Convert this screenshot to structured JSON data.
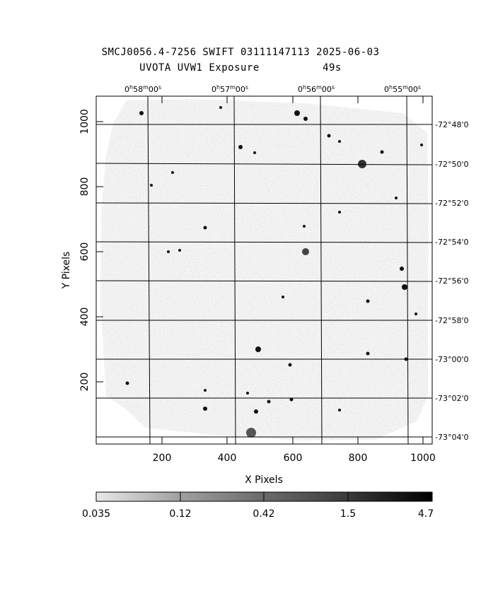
{
  "header": {
    "line1": "SMCJ0056.4-7256 SWIFT 03111147113 2025-06-03",
    "line2": "UVOTA UVW1 Exposure          49s"
  },
  "axes": {
    "xlabel": "X Pixels",
    "ylabel": "Y Pixels",
    "x_ticks": [
      "200",
      "400",
      "600",
      "800",
      "1000"
    ],
    "y_ticks": [
      "200",
      "400",
      "600",
      "800",
      "1000"
    ],
    "ra_ticks": [
      {
        "h": "0",
        "m": "58",
        "s": "00"
      },
      {
        "h": "0",
        "m": "57",
        "s": "00"
      },
      {
        "h": "0",
        "m": "56",
        "s": "00"
      },
      {
        "h": "0",
        "m": "55",
        "s": "00"
      }
    ],
    "dec_ticks": [
      "-72°48'0",
      "-72°50'0",
      "-72°52'0",
      "-72°54'0",
      "-72°56'0",
      "-72°58'0",
      "-73°00'0",
      "-73°02'0",
      "-73°04'0"
    ]
  },
  "colorbar": {
    "labels": [
      "0.035",
      "0.12",
      "0.42",
      "1.5",
      "4.7"
    ]
  }
}
